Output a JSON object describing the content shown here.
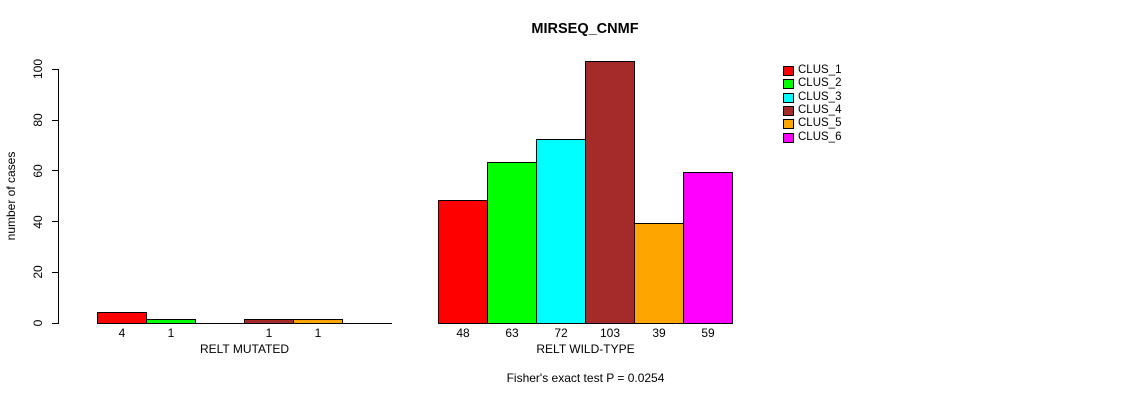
{
  "chart_data": {
    "type": "bar",
    "title": "MIRSEQ_CNMF",
    "ylabel": "number of cases",
    "xlabel": "",
    "ylim": [
      0,
      100
    ],
    "yticks": [
      0,
      20,
      40,
      60,
      80,
      100
    ],
    "grid": false,
    "legend_position": "right",
    "series_names": [
      "CLUS_1",
      "CLUS_2",
      "CLUS_3",
      "CLUS_4",
      "CLUS_5",
      "CLUS_6"
    ],
    "colors": [
      "#FF0000",
      "#00FF00",
      "#00FFFF",
      "#A52A2A",
      "#FFA500",
      "#FF00FF"
    ],
    "groups": [
      {
        "label": "RELT MUTATED",
        "values": [
          4,
          1,
          0,
          1,
          1,
          0
        ],
        "bar_labels": [
          "4",
          "1",
          "",
          "1",
          "1",
          ""
        ]
      },
      {
        "label": "RELT WILD-TYPE",
        "values": [
          48,
          63,
          72,
          103,
          39,
          59
        ],
        "bar_labels": [
          "48",
          "63",
          "72",
          "103",
          "39",
          "59"
        ]
      }
    ],
    "annotation": "Fisher's exact test P = 0.0254"
  },
  "legend": {
    "items": [
      {
        "label": "CLUS_1",
        "color": "#FF0000"
      },
      {
        "label": "CLUS_2",
        "color": "#00FF00"
      },
      {
        "label": "CLUS_3",
        "color": "#00FFFF"
      },
      {
        "label": "CLUS_4",
        "color": "#A52A2A"
      },
      {
        "label": "CLUS_5",
        "color": "#FFA500"
      },
      {
        "label": "CLUS_6",
        "color": "#FF00FF"
      }
    ]
  }
}
